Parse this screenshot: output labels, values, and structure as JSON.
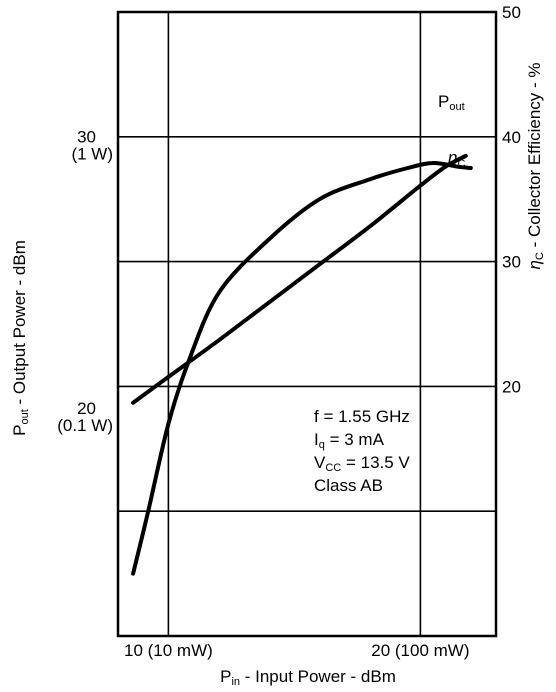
{
  "chart_data": {
    "type": "line",
    "x_axis": {
      "unit_label": "Input Power - dBm",
      "symbol": "P",
      "symbol_sub": "in",
      "range": [
        8,
        23
      ],
      "ticks": [
        {
          "value": 10,
          "label": "10 (10 mW)"
        },
        {
          "value": 20,
          "label": "20 (100 mW)"
        }
      ]
    },
    "y_left": {
      "unit_label": "Output Power - dBm",
      "symbol": "P",
      "symbol_sub": "out",
      "range": [
        12,
        35
      ],
      "ticks": [
        {
          "value": 20,
          "label": "20",
          "sublabel": "(0.1 W)"
        },
        {
          "value": 30,
          "label": "30",
          "sublabel": "(1 W)"
        }
      ]
    },
    "y_right": {
      "unit_label": "Collector Efficiency - %",
      "symbol": "η",
      "symbol_sub": "C",
      "range": [
        0,
        50
      ],
      "ticks": [
        {
          "value": 20,
          "label": "20"
        },
        {
          "value": 30,
          "label": "30"
        },
        {
          "value": 40,
          "label": "40"
        },
        {
          "value": 50,
          "label": "50"
        }
      ]
    },
    "grid": true,
    "series": [
      {
        "name": "Pout",
        "name_main": "P",
        "name_sub": "out",
        "axis": "left",
        "x": [
          8.6,
          10,
          12,
          14,
          16,
          18,
          20,
          21,
          21.8
        ],
        "y": [
          20.6,
          21.55,
          22.9,
          24.3,
          25.7,
          27.1,
          28.6,
          29.3,
          29.7
        ]
      },
      {
        "name": "ηC",
        "name_main": "η",
        "name_sub": "C",
        "axis": "right",
        "x": [
          8.6,
          9.2,
          10,
          10.8,
          12,
          14,
          16,
          18,
          19.5,
          20.5,
          21.5,
          22
        ],
        "y": [
          5,
          10,
          17,
          22,
          27.5,
          31.8,
          35,
          36.6,
          37.5,
          37.9,
          37.6,
          37.5
        ]
      }
    ],
    "annotations": [
      {
        "main": "f = 1.55 GHz"
      },
      {
        "main": "I",
        "sub": "q",
        "rest": " = 3 mA"
      },
      {
        "main": "V",
        "sub": "CC",
        "rest": " = 13.5 V"
      },
      {
        "main": "Class AB"
      }
    ]
  }
}
